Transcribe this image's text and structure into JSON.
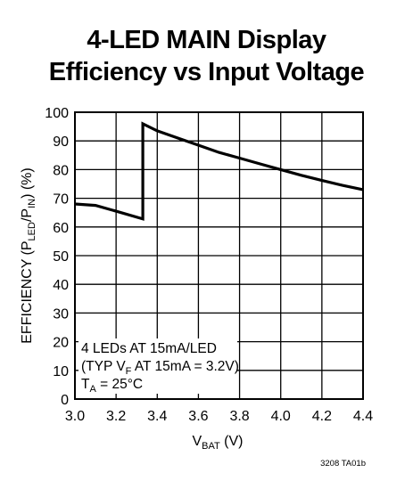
{
  "title_line1": "4-LED MAIN Display",
  "title_line2": "Efficiency vs Input Voltage",
  "figure_code": "3208 TA01b",
  "chart_data": {
    "type": "line",
    "title": "4-LED MAIN Display Efficiency vs Input Voltage",
    "xlabel": {
      "main": "V",
      "sub": "BAT",
      "unit": " (V)"
    },
    "ylabel": {
      "p1": "EFFICIENCY (P",
      "s1": "LED",
      "p2": "/P",
      "s2": "IN",
      "p3": ") (%)"
    },
    "xlim": [
      3.0,
      4.4
    ],
    "ylim": [
      0,
      100
    ],
    "x_ticks": [
      "3.0",
      "3.2",
      "3.4",
      "3.6",
      "3.8",
      "4.0",
      "4.2",
      "4.4"
    ],
    "y_ticks": [
      "0",
      "10",
      "20",
      "30",
      "40",
      "50",
      "60",
      "70",
      "80",
      "90",
      "100"
    ],
    "grid": true,
    "series": [
      {
        "color": "#000000",
        "points": [
          [
            3.0,
            68
          ],
          [
            3.1,
            67.5
          ],
          [
            3.2,
            65.5
          ],
          [
            3.33,
            62.8
          ],
          [
            3.33,
            96
          ],
          [
            3.4,
            93.5
          ],
          [
            3.5,
            91
          ],
          [
            3.6,
            88.5
          ],
          [
            3.7,
            86
          ],
          [
            3.8,
            84
          ],
          [
            3.9,
            82
          ],
          [
            4.0,
            80
          ],
          [
            4.1,
            78
          ],
          [
            4.2,
            76.2
          ],
          [
            4.3,
            74.5
          ],
          [
            4.4,
            73
          ]
        ]
      }
    ],
    "annotation": {
      "line1": "4 LEDs AT 15mA/LED",
      "line2": {
        "a": "(TYP V",
        "sub": "F",
        "b": " AT 15mA = 3.2V)"
      },
      "line3": {
        "a": "T",
        "sub": "A",
        "b": " = 25°C"
      }
    }
  }
}
